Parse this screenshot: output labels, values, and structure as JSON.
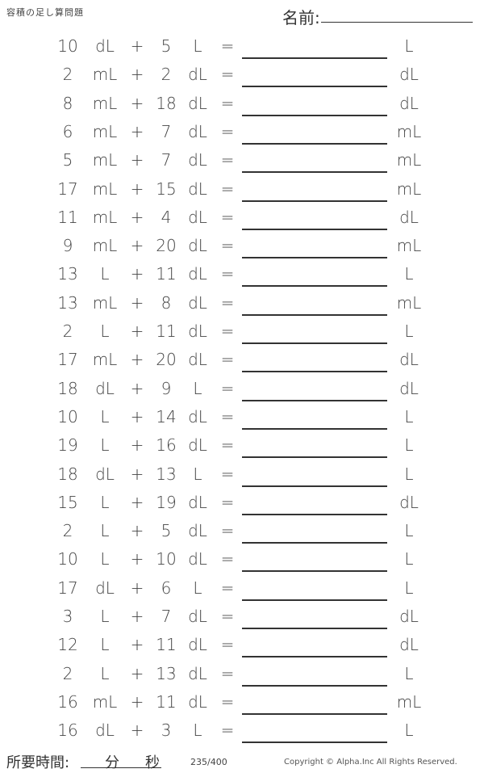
{
  "header": {
    "title": "容積の足し算問題",
    "name_label": "名前:"
  },
  "operator": "+",
  "equals": "=",
  "problems": [
    {
      "a": "10",
      "ua": "dL",
      "b": "5",
      "ub": "L",
      "ans_unit": "L"
    },
    {
      "a": "2",
      "ua": "mL",
      "b": "2",
      "ub": "dL",
      "ans_unit": "dL"
    },
    {
      "a": "8",
      "ua": "mL",
      "b": "18",
      "ub": "dL",
      "ans_unit": "dL"
    },
    {
      "a": "6",
      "ua": "mL",
      "b": "7",
      "ub": "dL",
      "ans_unit": "mL"
    },
    {
      "a": "5",
      "ua": "mL",
      "b": "7",
      "ub": "dL",
      "ans_unit": "mL"
    },
    {
      "a": "17",
      "ua": "mL",
      "b": "15",
      "ub": "dL",
      "ans_unit": "mL"
    },
    {
      "a": "11",
      "ua": "mL",
      "b": "4",
      "ub": "dL",
      "ans_unit": "dL"
    },
    {
      "a": "9",
      "ua": "mL",
      "b": "20",
      "ub": "dL",
      "ans_unit": "mL"
    },
    {
      "a": "13",
      "ua": "L",
      "b": "11",
      "ub": "dL",
      "ans_unit": "L"
    },
    {
      "a": "13",
      "ua": "mL",
      "b": "8",
      "ub": "dL",
      "ans_unit": "mL"
    },
    {
      "a": "2",
      "ua": "L",
      "b": "11",
      "ub": "dL",
      "ans_unit": "L"
    },
    {
      "a": "17",
      "ua": "mL",
      "b": "20",
      "ub": "dL",
      "ans_unit": "dL"
    },
    {
      "a": "18",
      "ua": "dL",
      "b": "9",
      "ub": "L",
      "ans_unit": "dL"
    },
    {
      "a": "10",
      "ua": "L",
      "b": "14",
      "ub": "dL",
      "ans_unit": "L"
    },
    {
      "a": "19",
      "ua": "L",
      "b": "16",
      "ub": "dL",
      "ans_unit": "L"
    },
    {
      "a": "18",
      "ua": "dL",
      "b": "13",
      "ub": "L",
      "ans_unit": "L"
    },
    {
      "a": "15",
      "ua": "L",
      "b": "19",
      "ub": "dL",
      "ans_unit": "dL"
    },
    {
      "a": "2",
      "ua": "L",
      "b": "5",
      "ub": "dL",
      "ans_unit": "L"
    },
    {
      "a": "10",
      "ua": "L",
      "b": "10",
      "ub": "dL",
      "ans_unit": "L"
    },
    {
      "a": "17",
      "ua": "dL",
      "b": "6",
      "ub": "L",
      "ans_unit": "L"
    },
    {
      "a": "3",
      "ua": "L",
      "b": "7",
      "ub": "dL",
      "ans_unit": "dL"
    },
    {
      "a": "12",
      "ua": "L",
      "b": "11",
      "ub": "dL",
      "ans_unit": "dL"
    },
    {
      "a": "2",
      "ua": "L",
      "b": "13",
      "ub": "dL",
      "ans_unit": "L"
    },
    {
      "a": "16",
      "ua": "mL",
      "b": "11",
      "ub": "dL",
      "ans_unit": "mL"
    },
    {
      "a": "16",
      "ua": "dL",
      "b": "3",
      "ub": "L",
      "ans_unit": "L"
    }
  ],
  "footer": {
    "time_label": "所要時間:",
    "minutes": "分",
    "seconds": "秒",
    "page": "235/400",
    "copyright": "Copyright © Alpha.Inc All Rights Reserved."
  }
}
